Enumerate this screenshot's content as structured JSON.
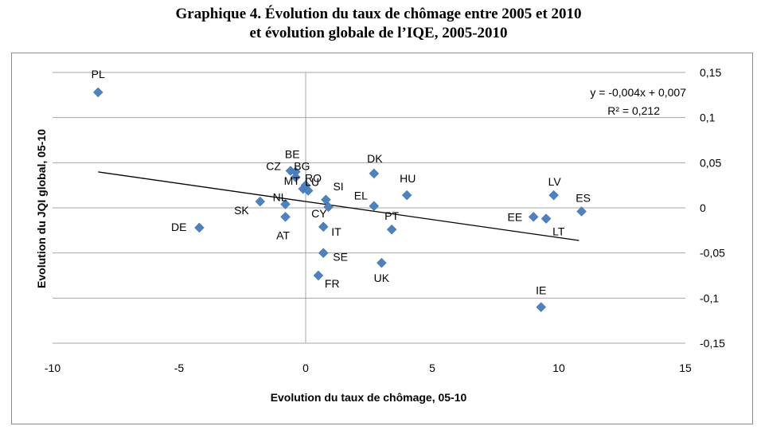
{
  "title": {
    "line1": "Graphique 4. Évolution du taux de chômage entre 2005 et 2010",
    "line2": "et évolution globale de l’IQE, 2005-2010"
  },
  "chart_data": {
    "type": "scatter",
    "xlabel": "Evolution du taux de chômage, 05-10",
    "ylabel": "Evolution du JQI global, 05-10",
    "xlim": [
      -10,
      15
    ],
    "ylim": [
      -0.15,
      0.15
    ],
    "x_ticks": [
      "-10",
      "-5",
      "0",
      "5",
      "10",
      "15"
    ],
    "y_ticks": [
      "0,15",
      "0,1",
      "0,05",
      "0",
      "-0,05",
      "-0,1",
      "-0,15"
    ],
    "grid": "horizontal",
    "marker_color": "#4f81bd",
    "trendline": {
      "equation": "y = -0,004x + 0,007",
      "r2": "R² = 0,212",
      "slope": -0.004,
      "intercept": 0.007,
      "x_range": [
        -8.2,
        10.8
      ]
    },
    "points": [
      {
        "label": "PL",
        "x": -8.2,
        "y": 0.128
      },
      {
        "label": "DE",
        "x": -4.2,
        "y": -0.022
      },
      {
        "label": "SK",
        "x": -1.8,
        "y": 0.007
      },
      {
        "label": "NL",
        "x": -0.8,
        "y": 0.004
      },
      {
        "label": "AT",
        "x": -0.8,
        "y": -0.01
      },
      {
        "label": "CZ",
        "x": -0.6,
        "y": 0.041
      },
      {
        "label": "BE",
        "x": -0.4,
        "y": 0.04
      },
      {
        "label": "BG",
        "x": -0.4,
        "y": 0.034
      },
      {
        "label": "MT",
        "x": -0.1,
        "y": 0.021
      },
      {
        "label": "LU",
        "x": 0.1,
        "y": 0.019
      },
      {
        "label": "RO",
        "x": 0.0,
        "y": 0.025
      },
      {
        "label": "SI",
        "x": 0.8,
        "y": 0.009
      },
      {
        "label": "CY",
        "x": 0.9,
        "y": 0.001
      },
      {
        "label": "IT",
        "x": 0.7,
        "y": -0.021
      },
      {
        "label": "SE",
        "x": 0.7,
        "y": -0.05
      },
      {
        "label": "FR",
        "x": 0.5,
        "y": -0.075
      },
      {
        "label": "DK",
        "x": 2.7,
        "y": 0.038
      },
      {
        "label": "EL",
        "x": 2.7,
        "y": 0.002
      },
      {
        "label": "PT",
        "x": 3.4,
        "y": -0.024
      },
      {
        "label": "UK",
        "x": 3.0,
        "y": -0.061
      },
      {
        "label": "HU",
        "x": 4.0,
        "y": 0.014
      },
      {
        "label": "LV",
        "x": 9.8,
        "y": 0.014
      },
      {
        "label": "EE",
        "x": 9.0,
        "y": -0.01
      },
      {
        "label": "LT",
        "x": 9.5,
        "y": -0.012
      },
      {
        "label": "ES",
        "x": 10.9,
        "y": -0.004
      },
      {
        "label": "IE",
        "x": 9.3,
        "y": -0.11
      }
    ]
  }
}
